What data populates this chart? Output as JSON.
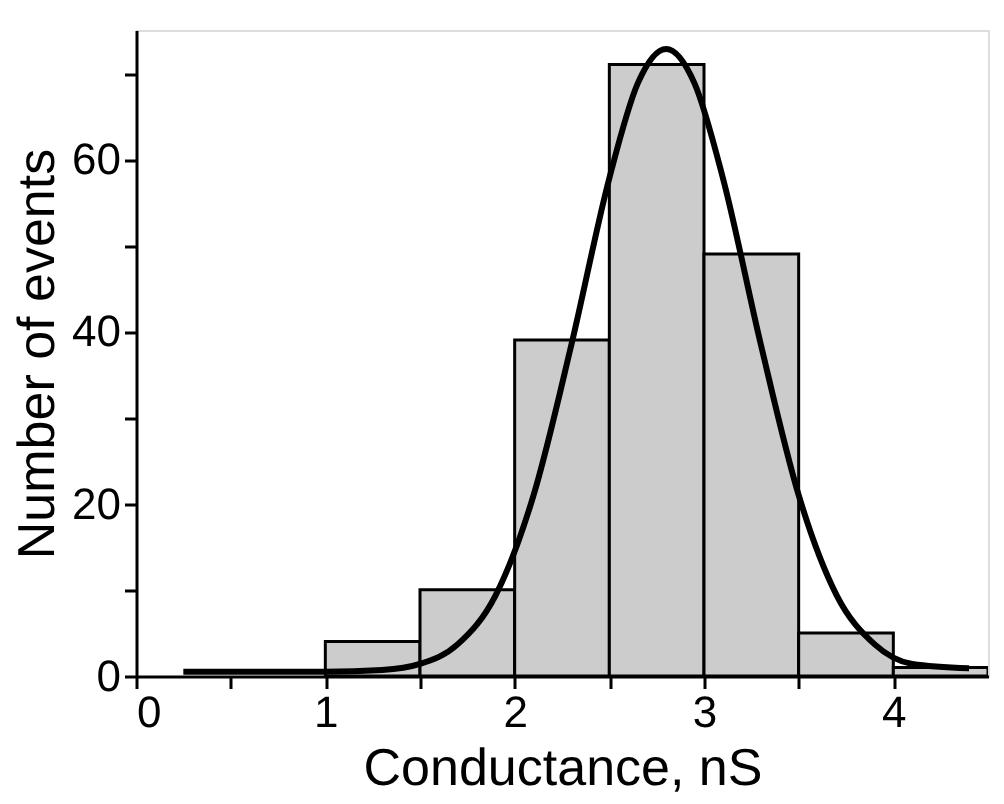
{
  "chart_data": {
    "type": "histogram",
    "xlabel": "Conductance, nS",
    "ylabel": "Number of events",
    "bins": [
      1.0,
      1.5,
      2.0,
      2.5,
      3.0,
      3.5,
      4.0,
      4.5
    ],
    "values": [
      4,
      10,
      39,
      71,
      49,
      5,
      1
    ],
    "color": "#cccccc",
    "series": [
      {
        "type": "line",
        "color": "#000000",
        "x": [
          0.25,
          1.0,
          1.3,
          1.5,
          1.7,
          1.9,
          2.1,
          2.3,
          2.5,
          2.65,
          2.8,
          2.95,
          3.1,
          3.3,
          3.5,
          3.7,
          3.9,
          4.1,
          4.4
        ],
        "values": [
          0.5,
          0.5,
          0.7,
          1.4,
          3.7,
          9.4,
          21,
          38.5,
          57.8,
          68.8,
          72.8,
          68.8,
          57.8,
          38.5,
          21,
          9.4,
          3.7,
          1.4,
          0.9
        ]
      }
    ],
    "xlim": [
      0,
      4.5
    ],
    "xticks": [
      0,
      {
        "value": 0.5,
        "label": null
      },
      1,
      {
        "value": 1.5,
        "label": null
      },
      2,
      {
        "value": 2.5,
        "label": null
      },
      3,
      {
        "value": 3.5,
        "label": null
      },
      4
    ],
    "ylim": [
      0,
      75
    ],
    "yticks": [
      0,
      {
        "value": 10,
        "label": null
      },
      20,
      {
        "value": 30,
        "label": null
      },
      40,
      {
        "value": 50,
        "label": null
      },
      60,
      {
        "value": 70,
        "label": null
      }
    ],
    "grid": false,
    "marker": "none",
    "line_style": "solid"
  }
}
